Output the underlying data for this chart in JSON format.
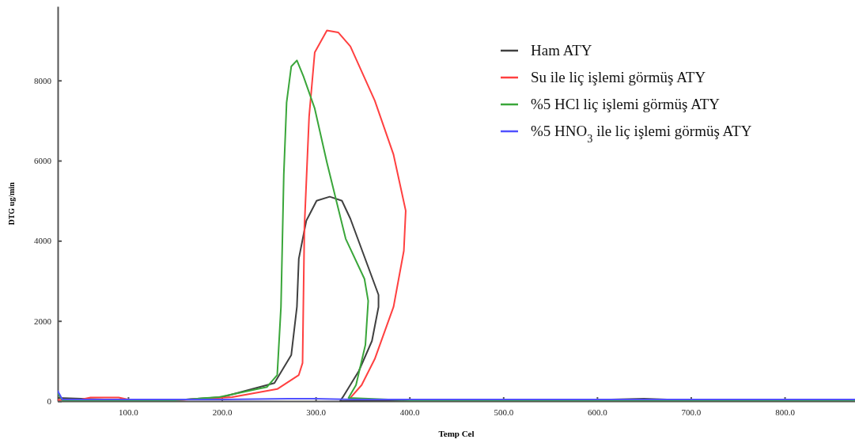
{
  "chart_data": {
    "type": "line",
    "xlabel": "Temp Cel",
    "ylabel": "DTG ug/min",
    "xlim": [
      25,
      875
    ],
    "ylim": [
      0,
      9850
    ],
    "xticks": [
      {
        "value": 100,
        "label": "100.0"
      },
      {
        "value": 200,
        "label": "200.0"
      },
      {
        "value": 300,
        "label": "300.0"
      },
      {
        "value": 400,
        "label": "400.0"
      },
      {
        "value": 500,
        "label": "500.0"
      },
      {
        "value": 600,
        "label": "600.0"
      },
      {
        "value": 700,
        "label": "700.0"
      },
      {
        "value": 800,
        "label": "800.0"
      }
    ],
    "yticks": [
      0,
      2000,
      4000,
      6000,
      8000
    ],
    "grid": false,
    "legend": "top right",
    "marker": "none",
    "line_style": "solid",
    "series": [
      {
        "name": "Ham ATY",
        "color": "#404040",
        "x": [
          25,
          100,
          150,
          200,
          256,
          274,
          280,
          282,
          290,
          301,
          315,
          328,
          337,
          367,
          367,
          360,
          346,
          329,
          326,
          400,
          500,
          600,
          650,
          700,
          800,
          875
        ],
        "values": [
          80,
          20,
          20,
          100,
          450,
          1150,
          2350,
          3550,
          4500,
          5000,
          5100,
          5000,
          4550,
          2650,
          2350,
          1500,
          750,
          100,
          0,
          20,
          20,
          30,
          60,
          20,
          20,
          20
        ]
      },
      {
        "name": "Su ile liç işlemi görmüş ATY",
        "color": "#ff4040",
        "x": [
          25,
          50,
          60,
          90,
          100,
          150,
          211,
          259,
          282,
          286,
          288,
          293,
          299,
          312,
          324,
          337,
          363,
          383,
          396,
          394,
          383,
          363,
          349,
          337
        ],
        "values": [
          30,
          40,
          90,
          90,
          40,
          20,
          100,
          300,
          650,
          950,
          4350,
          7100,
          8700,
          9250,
          9200,
          8850,
          7500,
          6150,
          4750,
          3750,
          2350,
          1050,
          400,
          80
        ]
      },
      {
        "name": "%5 HCl liç işlemi görmüş ATY",
        "color": "#3aa63a",
        "x": [
          25,
          30,
          100,
          150,
          197,
          248,
          259,
          263,
          266,
          269,
          274,
          280,
          287,
          299,
          312,
          332,
          352,
          356,
          353,
          343,
          335,
          400,
          500,
          600,
          700,
          800,
          875
        ],
        "values": [
          200,
          20,
          20,
          20,
          100,
          350,
          650,
          2350,
          5650,
          7450,
          8350,
          8500,
          8100,
          7300,
          5950,
          4050,
          3050,
          2500,
          1400,
          400,
          80,
          20,
          20,
          20,
          20,
          20,
          20
        ]
      },
      {
        "name": "%5 HNO$_{3}$ ile liç işlemi görmüş ATY",
        "color": "#5050ff",
        "x": [
          25,
          30,
          100,
          200,
          270,
          300,
          340,
          400,
          500,
          600,
          700,
          800,
          875
        ],
        "values": [
          250,
          40,
          40,
          40,
          60,
          60,
          40,
          40,
          40,
          40,
          40,
          40,
          40
        ]
      }
    ]
  }
}
